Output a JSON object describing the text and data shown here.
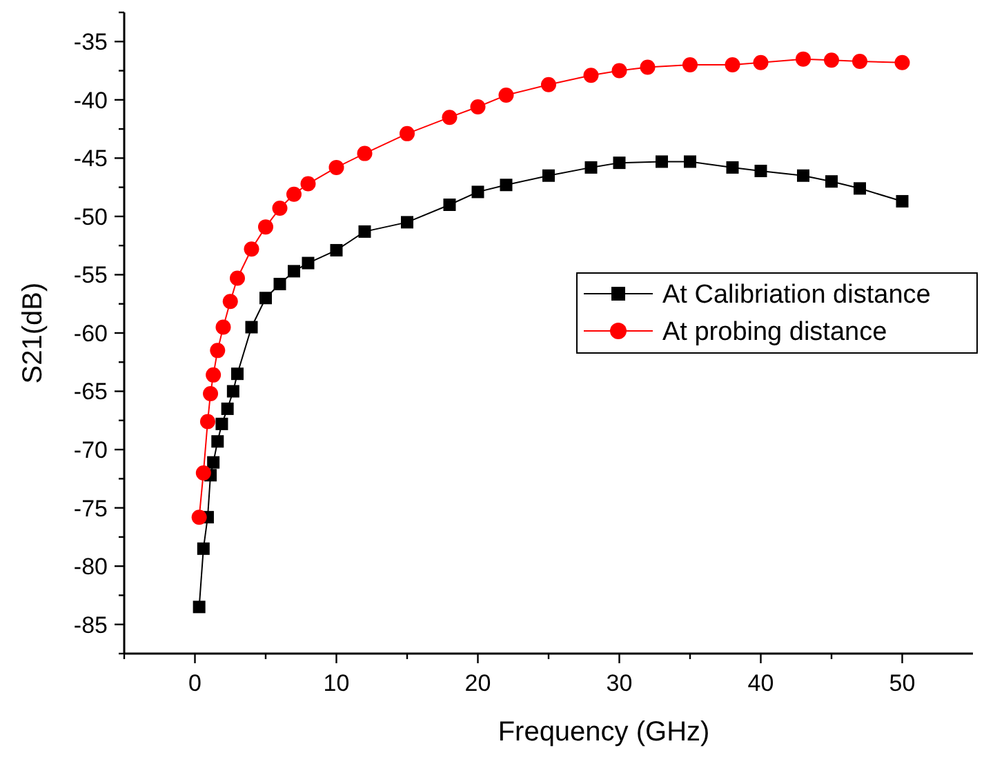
{
  "chart_data": {
    "type": "line",
    "xlabel": "Frequency (GHz)",
    "ylabel": "S21(dB)",
    "xlim": [
      -5,
      55
    ],
    "xticks": [
      {
        "value": -5,
        "label": null
      },
      0,
      {
        "value": 5,
        "label": null
      },
      10,
      {
        "value": 15,
        "label": null
      },
      20,
      {
        "value": 25,
        "label": null
      },
      30,
      {
        "value": 35,
        "label": null
      },
      40,
      {
        "value": 45,
        "label": null
      },
      50
    ],
    "ylim": [
      -87.5,
      -32.5
    ],
    "yticks": [
      {
        "value": -87.5,
        "label": null
      },
      -85,
      {
        "value": -82.5,
        "label": null
      },
      -80,
      {
        "value": -77.5,
        "label": null
      },
      -75,
      {
        "value": -72.5,
        "label": null
      },
      -70,
      {
        "value": -67.5,
        "label": null
      },
      -65,
      {
        "value": -62.5,
        "label": null
      },
      -60,
      {
        "value": -57.5,
        "label": null
      },
      -55,
      {
        "value": -52.5,
        "label": null
      },
      -50,
      {
        "value": -47.5,
        "label": null
      },
      -45,
      {
        "value": -42.5,
        "label": null
      },
      -40,
      {
        "value": -37.5,
        "label": null
      },
      -35,
      {
        "value": -32.5,
        "label": null
      }
    ],
    "grid": false,
    "legend": "right",
    "line_style": "solid",
    "series": [
      {
        "name": "At Calibriation distance",
        "color": "#000000",
        "marker": "square",
        "x": [
          0.3,
          0.6,
          0.9,
          1.1,
          1.3,
          1.6,
          1.9,
          2.3,
          2.7,
          3,
          4,
          5,
          6,
          7,
          8,
          10,
          12,
          15,
          18,
          20,
          22,
          25,
          28,
          30,
          33,
          35,
          38,
          40,
          43,
          45,
          47,
          50
        ],
        "values": [
          -83.5,
          -78.5,
          -75.8,
          -72.2,
          -71.1,
          -69.3,
          -67.8,
          -66.5,
          -65,
          -63.5,
          -59.5,
          -57,
          -55.8,
          -54.7,
          -54,
          -52.9,
          -51.3,
          -50.5,
          -49,
          -47.9,
          -47.3,
          -46.5,
          -45.8,
          -45.4,
          -45.3,
          -45.3,
          -45.8,
          -46.1,
          -46.5,
          -47,
          -47.6,
          -48.7
        ]
      },
      {
        "name": "At probing distance",
        "color": "#ff0000",
        "marker": "circle",
        "x": [
          0.3,
          0.6,
          0.9,
          1.1,
          1.3,
          1.6,
          2,
          2.5,
          3,
          4,
          5,
          6,
          7,
          8,
          10,
          12,
          15,
          18,
          20,
          22,
          25,
          28,
          30,
          32,
          35,
          38,
          40,
          43,
          45,
          47,
          50
        ],
        "values": [
          -75.8,
          -72,
          -67.6,
          -65.2,
          -63.6,
          -61.5,
          -59.5,
          -57.3,
          -55.3,
          -52.8,
          -50.9,
          -49.3,
          -48.1,
          -47.2,
          -45.8,
          -44.6,
          -42.9,
          -41.5,
          -40.6,
          -39.6,
          -38.7,
          -37.9,
          -37.5,
          -37.2,
          -37,
          -37,
          -36.8,
          -36.5,
          -36.6,
          -36.7,
          -36.8
        ]
      }
    ]
  }
}
